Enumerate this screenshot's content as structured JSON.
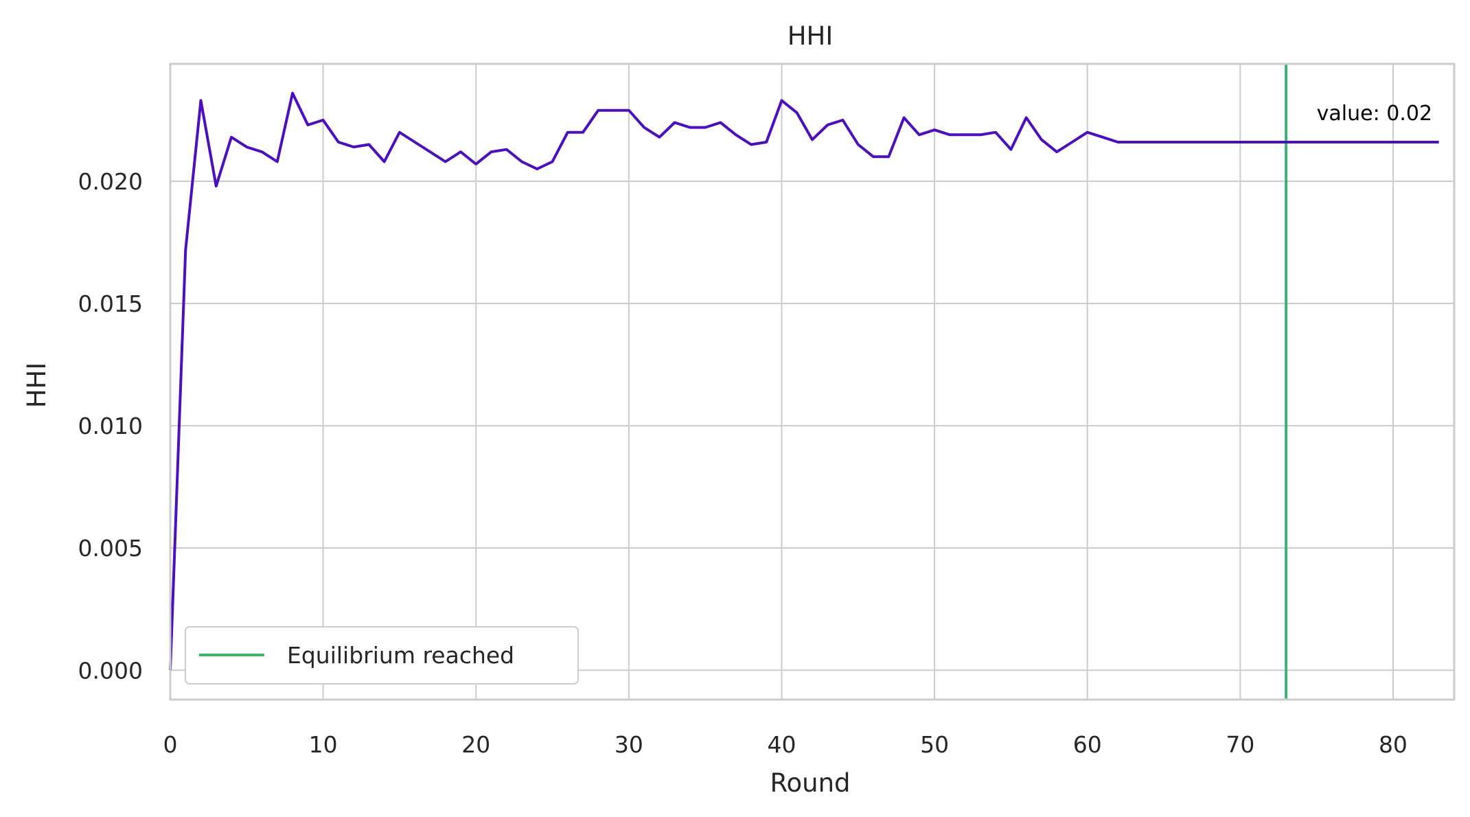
{
  "chart_data": {
    "type": "line",
    "title": "HHI",
    "xlabel": "Round",
    "ylabel": "HHI",
    "xlim": [
      0,
      84
    ],
    "ylim": [
      -0.0012,
      0.0248
    ],
    "xticks": [
      0,
      10,
      20,
      30,
      40,
      50,
      60,
      70,
      80
    ],
    "xtick_labels": [
      "0",
      "10",
      "20",
      "30",
      "40",
      "50",
      "60",
      "70",
      "80"
    ],
    "yticks": [
      0.0,
      0.005,
      0.01,
      0.015,
      0.02
    ],
    "ytick_labels": [
      "0.000",
      "0.005",
      "0.010",
      "0.015",
      "0.020"
    ],
    "grid": true,
    "legend": {
      "position": "lower-left",
      "entries": [
        {
          "label": "Equilibrium reached",
          "color": "#3cb371"
        }
      ]
    },
    "series": [
      {
        "color": "#4b0fbe",
        "x": [
          0,
          1,
          2,
          3,
          4,
          5,
          6,
          7,
          8,
          9,
          10,
          11,
          12,
          13,
          14,
          15,
          16,
          17,
          18,
          19,
          20,
          21,
          22,
          23,
          24,
          25,
          26,
          27,
          28,
          29,
          30,
          31,
          32,
          33,
          34,
          35,
          36,
          37,
          38,
          39,
          40,
          41,
          42,
          43,
          44,
          45,
          46,
          47,
          48,
          49,
          50,
          51,
          52,
          53,
          54,
          55,
          56,
          57,
          58,
          59,
          60,
          61,
          62,
          63,
          64,
          65,
          66,
          67,
          68,
          69,
          70,
          71,
          72,
          73,
          74,
          75,
          76,
          77,
          78,
          79,
          80,
          81,
          82,
          83
        ],
        "y": [
          0.0,
          0.0172,
          0.0233,
          0.0198,
          0.0218,
          0.0214,
          0.0212,
          0.0208,
          0.0236,
          0.0223,
          0.0225,
          0.0216,
          0.0214,
          0.0215,
          0.0208,
          0.022,
          0.0216,
          0.0212,
          0.0208,
          0.0212,
          0.0207,
          0.0212,
          0.0213,
          0.0208,
          0.0205,
          0.0208,
          0.022,
          0.022,
          0.0229,
          0.0229,
          0.0229,
          0.0222,
          0.0218,
          0.0224,
          0.0222,
          0.0222,
          0.0224,
          0.0219,
          0.0215,
          0.0216,
          0.0233,
          0.0228,
          0.0217,
          0.0223,
          0.0225,
          0.0215,
          0.021,
          0.021,
          0.0226,
          0.0219,
          0.0221,
          0.0219,
          0.0219,
          0.0219,
          0.022,
          0.0213,
          0.0226,
          0.0217,
          0.0212,
          0.0216,
          0.022,
          0.0218,
          0.0216,
          0.0216,
          0.0216,
          0.0216,
          0.0216,
          0.0216,
          0.0216,
          0.0216,
          0.0216,
          0.0216,
          0.0216,
          0.0216,
          0.0216,
          0.0216,
          0.0216,
          0.0216,
          0.0216,
          0.0216,
          0.0216,
          0.0216,
          0.0216,
          0.0216
        ]
      }
    ],
    "vline": {
      "x": 73,
      "color": "#3cb371",
      "label": "Equilibrium reached"
    },
    "annotation": {
      "text": "value: 0.02",
      "x": 75,
      "y": 0.0225
    }
  }
}
